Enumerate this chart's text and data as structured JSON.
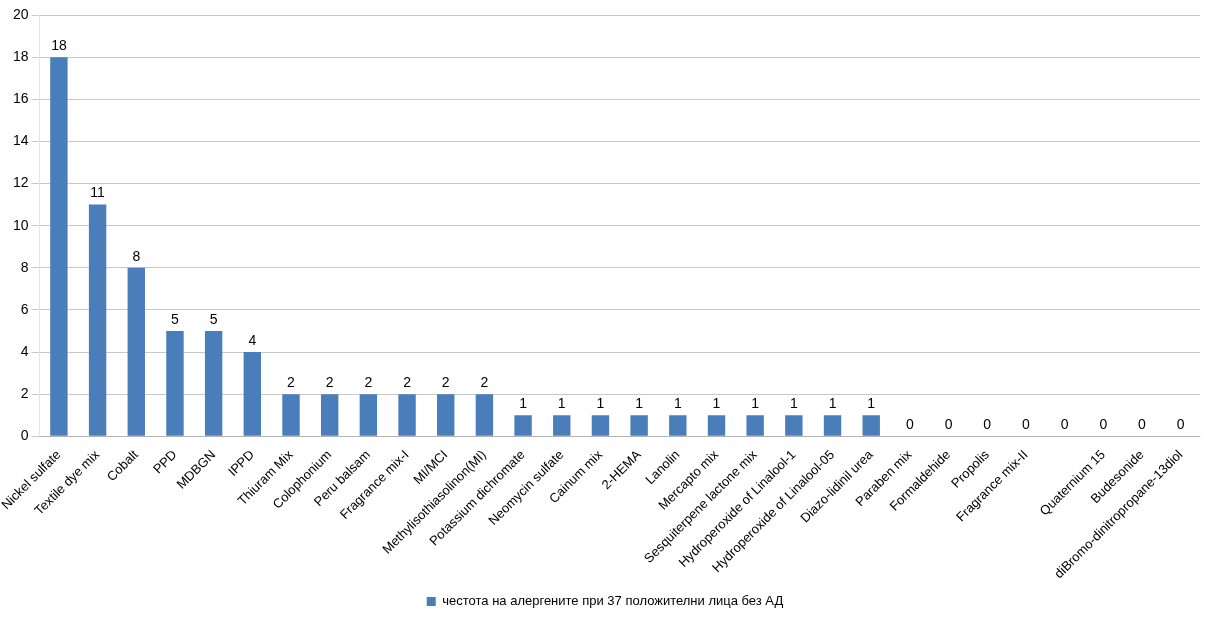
{
  "chart_data": {
    "type": "bar",
    "categories": [
      "Nickel sulfate",
      "Textile dye mix",
      "Cobalt",
      "PPD",
      "MDBGN",
      "IPPD",
      "Thiuram Mix",
      "Colophonium",
      "Peru balsam",
      "Fragrance mix-I",
      "MI/MCI",
      "Methylisothiasolinon(MI)",
      "Potassium dichromate",
      "Neomycin sulfate",
      "Cainum mix",
      "2-HEMA",
      "Lanolin",
      "Mercapto mix",
      "Sesquiterpene lactone mix",
      "Hydroperoxide of Linalool-1",
      "Hydroperoxide of Linalool-05",
      "Diazo-lidinil urea",
      "Paraben mix",
      "Formaldehide",
      "Propolis",
      "Fragrance mix-II",
      null,
      "Quaternium 15",
      "Budesonide",
      "diBromo-dinitropropane-13diol"
    ],
    "series": [
      {
        "name": "честота на алергените при 37 положителни лица без АД",
        "color": "#4a7ebb",
        "values": [
          18,
          11,
          8,
          5,
          5,
          4,
          2,
          2,
          2,
          2,
          2,
          2,
          1,
          1,
          1,
          1,
          1,
          1,
          1,
          1,
          1,
          1,
          0,
          0,
          0,
          0,
          0,
          0,
          0,
          0
        ]
      }
    ],
    "ylim": [
      0,
      20
    ],
    "yticks": [
      0,
      2,
      4,
      6,
      8,
      10,
      12,
      14,
      16,
      18,
      20
    ],
    "grid": "y",
    "legend": "bottom",
    "data_labels": true
  }
}
